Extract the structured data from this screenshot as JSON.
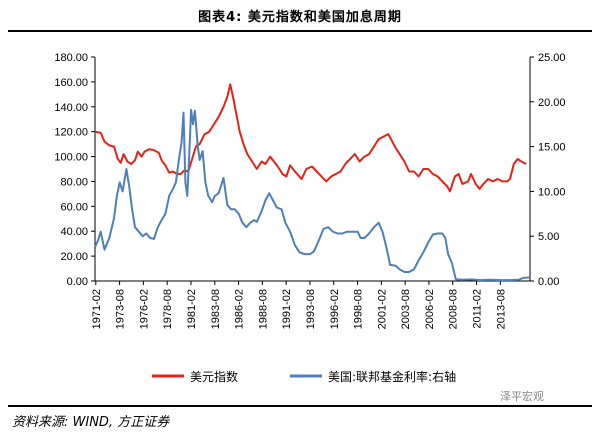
{
  "title": "图表4:   美元指数和美国加息周期",
  "source": "资料来源: WIND, 方正证券",
  "watermark": "泽平宏观",
  "chart_data": {
    "type": "line",
    "x_tick_labels": [
      "1971-02",
      "1973-08",
      "1976-02",
      "1978-08",
      "1981-02",
      "1983-08",
      "1986-02",
      "1988-08",
      "1991-02",
      "1993-08",
      "1996-02",
      "1998-08",
      "2001-02",
      "2003-08",
      "2006-02",
      "2008-08",
      "2011-02",
      "2013-08"
    ],
    "x_range": [
      1971.0,
      2016.7
    ],
    "left_axis": {
      "min": 0,
      "max": 180,
      "step": 20,
      "tick_labels": [
        "0.00",
        "20.00",
        "40.00",
        "60.00",
        "80.00",
        "100.00",
        "120.00",
        "140.00",
        "160.00",
        "180.00"
      ]
    },
    "right_axis": {
      "min": 0,
      "max": 25,
      "step": 5,
      "tick_labels": [
        "0.00",
        "5.00",
        "10.00",
        "15.00",
        "20.00",
        "25.00"
      ]
    },
    "grid": false,
    "legend_position": "bottom",
    "series": [
      {
        "name": "美元指数",
        "color": "#e2231a",
        "axis": "left",
        "points": [
          [
            1971.0,
            120
          ],
          [
            1971.6,
            119
          ],
          [
            1972.0,
            112
          ],
          [
            1972.5,
            109
          ],
          [
            1973.0,
            108
          ],
          [
            1973.4,
            98
          ],
          [
            1973.7,
            95
          ],
          [
            1974.0,
            102
          ],
          [
            1974.4,
            96
          ],
          [
            1974.8,
            94
          ],
          [
            1975.2,
            97
          ],
          [
            1975.5,
            104
          ],
          [
            1975.9,
            100
          ],
          [
            1976.2,
            104
          ],
          [
            1976.7,
            106
          ],
          [
            1977.2,
            105
          ],
          [
            1977.7,
            103
          ],
          [
            1978.0,
            97
          ],
          [
            1978.4,
            93
          ],
          [
            1978.8,
            87
          ],
          [
            1979.2,
            88
          ],
          [
            1979.6,
            86
          ],
          [
            1980.0,
            86
          ],
          [
            1980.4,
            89
          ],
          [
            1980.8,
            88
          ],
          [
            1981.2,
            98
          ],
          [
            1981.6,
            108
          ],
          [
            1982.0,
            110
          ],
          [
            1982.5,
            118
          ],
          [
            1983.0,
            120
          ],
          [
            1983.5,
            126
          ],
          [
            1984.0,
            132
          ],
          [
            1984.5,
            140
          ],
          [
            1984.9,
            148
          ],
          [
            1985.2,
            158
          ],
          [
            1985.5,
            148
          ],
          [
            1985.8,
            136
          ],
          [
            1986.2,
            120
          ],
          [
            1986.6,
            110
          ],
          [
            1987.0,
            102
          ],
          [
            1987.5,
            96
          ],
          [
            1988.0,
            90
          ],
          [
            1988.5,
            96
          ],
          [
            1988.9,
            94
          ],
          [
            1989.4,
            100
          ],
          [
            1989.8,
            96
          ],
          [
            1990.2,
            92
          ],
          [
            1990.7,
            86
          ],
          [
            1991.1,
            84
          ],
          [
            1991.5,
            93
          ],
          [
            1992.0,
            88
          ],
          [
            1992.7,
            82
          ],
          [
            1993.2,
            90
          ],
          [
            1993.8,
            92
          ],
          [
            1994.3,
            88
          ],
          [
            1994.8,
            84
          ],
          [
            1995.3,
            80
          ],
          [
            1995.8,
            84
          ],
          [
            1996.3,
            86
          ],
          [
            1996.8,
            88
          ],
          [
            1997.3,
            94
          ],
          [
            1997.8,
            98
          ],
          [
            1998.3,
            102
          ],
          [
            1998.8,
            96
          ],
          [
            1999.3,
            100
          ],
          [
            1999.8,
            102
          ],
          [
            2000.3,
            108
          ],
          [
            2000.8,
            114
          ],
          [
            2001.3,
            116
          ],
          [
            2001.8,
            118
          ],
          [
            2002.1,
            114
          ],
          [
            2002.5,
            108
          ],
          [
            2003.0,
            102
          ],
          [
            2003.5,
            96
          ],
          [
            2004.0,
            88
          ],
          [
            2004.5,
            88
          ],
          [
            2005.0,
            84
          ],
          [
            2005.5,
            90
          ],
          [
            2006.0,
            90
          ],
          [
            2006.5,
            86
          ],
          [
            2007.0,
            84
          ],
          [
            2007.5,
            80
          ],
          [
            2008.0,
            76
          ],
          [
            2008.3,
            72
          ],
          [
            2008.8,
            84
          ],
          [
            2009.2,
            86
          ],
          [
            2009.6,
            78
          ],
          [
            2010.2,
            80
          ],
          [
            2010.5,
            86
          ],
          [
            2011.0,
            78
          ],
          [
            2011.4,
            74
          ],
          [
            2011.8,
            78
          ],
          [
            2012.3,
            82
          ],
          [
            2012.8,
            80
          ],
          [
            2013.3,
            82
          ],
          [
            2013.8,
            80
          ],
          [
            2014.3,
            80
          ],
          [
            2014.6,
            82
          ],
          [
            2015.0,
            94
          ],
          [
            2015.4,
            98
          ],
          [
            2015.8,
            96
          ],
          [
            2016.3,
            94
          ]
        ]
      },
      {
        "name": "美国:联邦基金利率:右轴",
        "color": "#4e7fb5",
        "axis": "right",
        "points": [
          [
            1971.0,
            3.8
          ],
          [
            1971.3,
            4.5
          ],
          [
            1971.6,
            5.5
          ],
          [
            1972.0,
            3.5
          ],
          [
            1972.5,
            4.8
          ],
          [
            1973.0,
            7.0
          ],
          [
            1973.3,
            9.5
          ],
          [
            1973.6,
            11.0
          ],
          [
            1973.9,
            10.0
          ],
          [
            1974.3,
            12.5
          ],
          [
            1974.6,
            10.5
          ],
          [
            1974.9,
            8.0
          ],
          [
            1975.2,
            6.0
          ],
          [
            1975.6,
            5.5
          ],
          [
            1976.0,
            5.0
          ],
          [
            1976.4,
            5.3
          ],
          [
            1976.8,
            4.8
          ],
          [
            1977.2,
            4.7
          ],
          [
            1977.6,
            6.0
          ],
          [
            1978.0,
            6.8
          ],
          [
            1978.4,
            7.5
          ],
          [
            1978.8,
            9.5
          ],
          [
            1979.2,
            10.3
          ],
          [
            1979.5,
            11.0
          ],
          [
            1979.8,
            13.5
          ],
          [
            1980.1,
            15.5
          ],
          [
            1980.3,
            18.8
          ],
          [
            1980.5,
            11.0
          ],
          [
            1980.7,
            9.5
          ],
          [
            1980.9,
            14.0
          ],
          [
            1981.1,
            19.1
          ],
          [
            1981.3,
            17.5
          ],
          [
            1981.5,
            19.0
          ],
          [
            1981.8,
            15.0
          ],
          [
            1982.0,
            13.5
          ],
          [
            1982.3,
            14.5
          ],
          [
            1982.6,
            11.0
          ],
          [
            1982.9,
            9.5
          ],
          [
            1983.3,
            8.8
          ],
          [
            1983.6,
            9.5
          ],
          [
            1984.0,
            9.8
          ],
          [
            1984.5,
            11.5
          ],
          [
            1984.9,
            8.5
          ],
          [
            1985.3,
            8.0
          ],
          [
            1985.7,
            8.0
          ],
          [
            1986.1,
            7.5
          ],
          [
            1986.5,
            6.5
          ],
          [
            1986.9,
            6.0
          ],
          [
            1987.3,
            6.5
          ],
          [
            1987.7,
            6.8
          ],
          [
            1988.0,
            6.6
          ],
          [
            1988.5,
            7.8
          ],
          [
            1988.9,
            9.0
          ],
          [
            1989.3,
            9.8
          ],
          [
            1989.7,
            9.0
          ],
          [
            1990.1,
            8.2
          ],
          [
            1990.6,
            8.0
          ],
          [
            1991.0,
            6.5
          ],
          [
            1991.5,
            5.5
          ],
          [
            1992.0,
            4.0
          ],
          [
            1992.5,
            3.2
          ],
          [
            1993.0,
            3.0
          ],
          [
            1993.6,
            3.0
          ],
          [
            1994.0,
            3.3
          ],
          [
            1994.5,
            4.5
          ],
          [
            1995.0,
            5.8
          ],
          [
            1995.5,
            6.0
          ],
          [
            1996.0,
            5.5
          ],
          [
            1996.5,
            5.3
          ],
          [
            1997.0,
            5.3
          ],
          [
            1997.5,
            5.5
          ],
          [
            1998.0,
            5.5
          ],
          [
            1998.6,
            5.5
          ],
          [
            1998.9,
            4.8
          ],
          [
            1999.3,
            4.8
          ],
          [
            1999.8,
            5.3
          ],
          [
            2000.3,
            6.0
          ],
          [
            2000.8,
            6.5
          ],
          [
            2001.2,
            5.5
          ],
          [
            2001.6,
            3.8
          ],
          [
            2002.0,
            1.8
          ],
          [
            2002.6,
            1.7
          ],
          [
            2003.0,
            1.3
          ],
          [
            2003.5,
            1.0
          ],
          [
            2004.0,
            1.0
          ],
          [
            2004.5,
            1.3
          ],
          [
            2005.0,
            2.3
          ],
          [
            2005.5,
            3.2
          ],
          [
            2006.0,
            4.3
          ],
          [
            2006.5,
            5.2
          ],
          [
            2007.0,
            5.3
          ],
          [
            2007.5,
            5.3
          ],
          [
            2007.8,
            4.8
          ],
          [
            2008.1,
            3.0
          ],
          [
            2008.5,
            2.0
          ],
          [
            2008.9,
            0.2
          ],
          [
            2009.5,
            0.15
          ],
          [
            2010.5,
            0.18
          ],
          [
            2011.5,
            0.1
          ],
          [
            2012.5,
            0.15
          ],
          [
            2013.5,
            0.1
          ],
          [
            2014.5,
            0.1
          ],
          [
            2015.5,
            0.13
          ],
          [
            2016.0,
            0.35
          ],
          [
            2016.7,
            0.4
          ]
        ]
      }
    ]
  }
}
